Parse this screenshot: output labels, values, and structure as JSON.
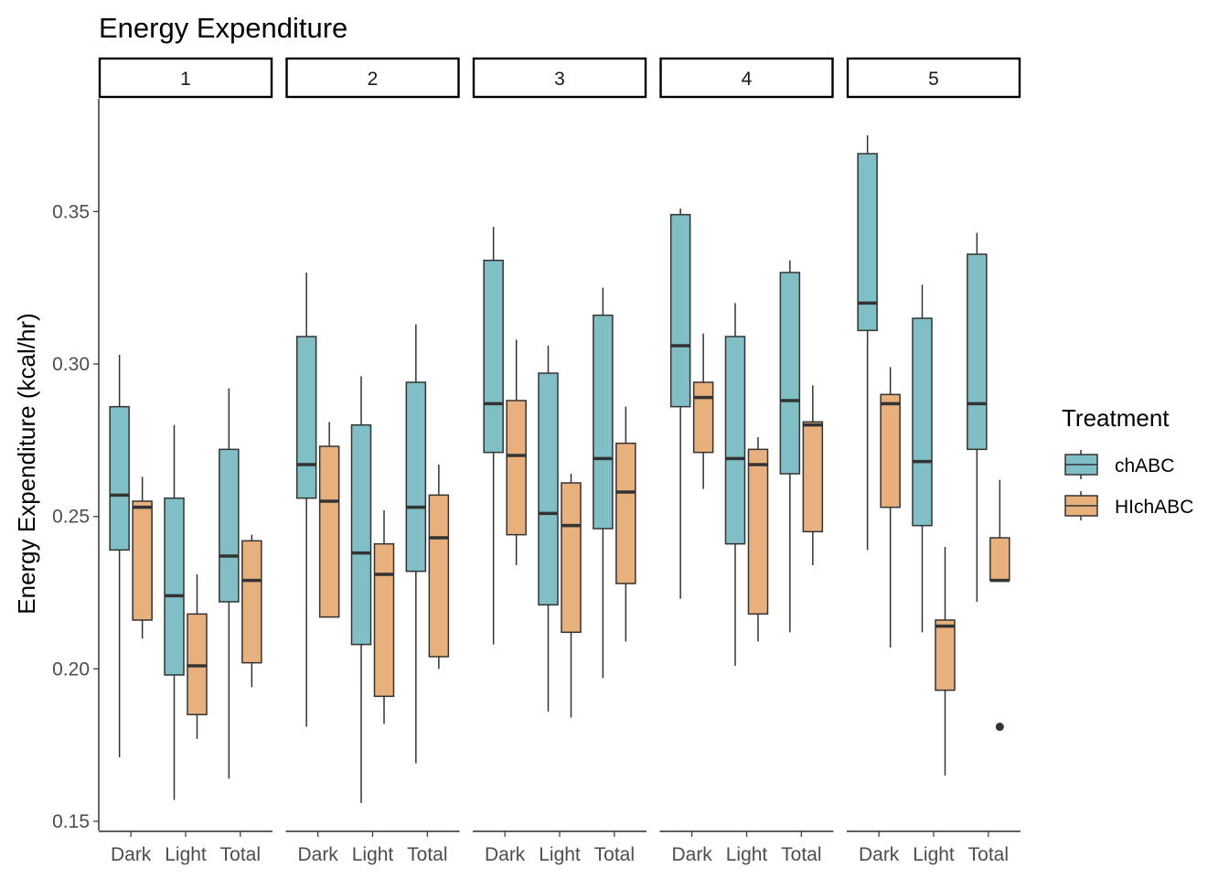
{
  "chart_data": {
    "type": "boxplot",
    "title": "Energy Expenditure",
    "ylabel": "Energy Expenditure (kcal/hr)",
    "xlabel": "",
    "ylim": [
      0.147,
      0.387
    ],
    "yticks": [
      0.15,
      0.2,
      0.25,
      0.3,
      0.35
    ],
    "ytick_labels": [
      "0.15",
      "0.20",
      "0.25",
      "0.30",
      "0.35"
    ],
    "categories": [
      "Dark",
      "Light",
      "Total"
    ],
    "grid": false,
    "legend": {
      "title": "Treatment",
      "position": "right",
      "entries": [
        {
          "name": "chABC",
          "color": "#7fbfc5"
        },
        {
          "name": "HIchABC",
          "color": "#e8b07c"
        }
      ]
    },
    "panels": [
      {
        "label": "1",
        "groups": [
          {
            "category": "Dark",
            "chABC": {
              "min": 0.171,
              "q1": 0.239,
              "median": 0.257,
              "q3": 0.286,
              "max": 0.303
            },
            "HIchABC": {
              "min": 0.21,
              "q1": 0.216,
              "median": 0.253,
              "q3": 0.255,
              "max": 0.263
            }
          },
          {
            "category": "Light",
            "chABC": {
              "min": 0.157,
              "q1": 0.198,
              "median": 0.224,
              "q3": 0.256,
              "max": 0.28
            },
            "HIchABC": {
              "min": 0.177,
              "q1": 0.185,
              "median": 0.201,
              "q3": 0.218,
              "max": 0.231
            }
          },
          {
            "category": "Total",
            "chABC": {
              "min": 0.164,
              "q1": 0.222,
              "median": 0.237,
              "q3": 0.272,
              "max": 0.292
            },
            "HIchABC": {
              "min": 0.194,
              "q1": 0.202,
              "median": 0.229,
              "q3": 0.242,
              "max": 0.244
            }
          }
        ]
      },
      {
        "label": "2",
        "groups": [
          {
            "category": "Dark",
            "chABC": {
              "min": 0.181,
              "q1": 0.256,
              "median": 0.267,
              "q3": 0.309,
              "max": 0.33
            },
            "HIchABC": {
              "min": 0.217,
              "q1": 0.217,
              "median": 0.255,
              "q3": 0.273,
              "max": 0.281
            }
          },
          {
            "category": "Light",
            "chABC": {
              "min": 0.156,
              "q1": 0.208,
              "median": 0.238,
              "q3": 0.28,
              "max": 0.296
            },
            "HIchABC": {
              "min": 0.182,
              "q1": 0.191,
              "median": 0.231,
              "q3": 0.241,
              "max": 0.252
            }
          },
          {
            "category": "Total",
            "chABC": {
              "min": 0.169,
              "q1": 0.232,
              "median": 0.253,
              "q3": 0.294,
              "max": 0.313
            },
            "HIchABC": {
              "min": 0.2,
              "q1": 0.204,
              "median": 0.243,
              "q3": 0.257,
              "max": 0.267
            }
          }
        ]
      },
      {
        "label": "3",
        "groups": [
          {
            "category": "Dark",
            "chABC": {
              "min": 0.208,
              "q1": 0.271,
              "median": 0.287,
              "q3": 0.334,
              "max": 0.345
            },
            "HIchABC": {
              "min": 0.234,
              "q1": 0.244,
              "median": 0.27,
              "q3": 0.288,
              "max": 0.308
            }
          },
          {
            "category": "Light",
            "chABC": {
              "min": 0.186,
              "q1": 0.221,
              "median": 0.251,
              "q3": 0.297,
              "max": 0.306
            },
            "HIchABC": {
              "min": 0.184,
              "q1": 0.212,
              "median": 0.247,
              "q3": 0.261,
              "max": 0.264
            }
          },
          {
            "category": "Total",
            "chABC": {
              "min": 0.197,
              "q1": 0.246,
              "median": 0.269,
              "q3": 0.316,
              "max": 0.325
            },
            "HIchABC": {
              "min": 0.209,
              "q1": 0.228,
              "median": 0.258,
              "q3": 0.274,
              "max": 0.286
            }
          }
        ]
      },
      {
        "label": "4",
        "groups": [
          {
            "category": "Dark",
            "chABC": {
              "min": 0.223,
              "q1": 0.286,
              "median": 0.306,
              "q3": 0.349,
              "max": 0.351
            },
            "HIchABC": {
              "min": 0.259,
              "q1": 0.271,
              "median": 0.289,
              "q3": 0.294,
              "max": 0.31
            }
          },
          {
            "category": "Light",
            "chABC": {
              "min": 0.201,
              "q1": 0.241,
              "median": 0.269,
              "q3": 0.309,
              "max": 0.32
            },
            "HIchABC": {
              "min": 0.209,
              "q1": 0.218,
              "median": 0.267,
              "q3": 0.272,
              "max": 0.276
            }
          },
          {
            "category": "Total",
            "chABC": {
              "min": 0.212,
              "q1": 0.264,
              "median": 0.288,
              "q3": 0.33,
              "max": 0.334
            },
            "HIchABC": {
              "min": 0.234,
              "q1": 0.245,
              "median": 0.28,
              "q3": 0.281,
              "max": 0.293
            }
          }
        ]
      },
      {
        "label": "5",
        "groups": [
          {
            "category": "Dark",
            "chABC": {
              "min": 0.239,
              "q1": 0.311,
              "median": 0.32,
              "q3": 0.369,
              "max": 0.375
            },
            "HIchABC": {
              "min": 0.207,
              "q1": 0.253,
              "median": 0.287,
              "q3": 0.29,
              "max": 0.299
            }
          },
          {
            "category": "Light",
            "chABC": {
              "min": 0.212,
              "q1": 0.247,
              "median": 0.268,
              "q3": 0.315,
              "max": 0.326
            },
            "HIchABC": {
              "min": 0.165,
              "q1": 0.193,
              "median": 0.214,
              "q3": 0.216,
              "max": 0.24
            }
          },
          {
            "category": "Total",
            "chABC": {
              "min": 0.222,
              "q1": 0.272,
              "median": 0.287,
              "q3": 0.336,
              "max": 0.343
            },
            "HIchABC": {
              "min": 0.229,
              "q1": 0.229,
              "median": 0.229,
              "q3": 0.243,
              "max": 0.262,
              "outliers": [
                0.181
              ]
            }
          }
        ]
      }
    ]
  }
}
